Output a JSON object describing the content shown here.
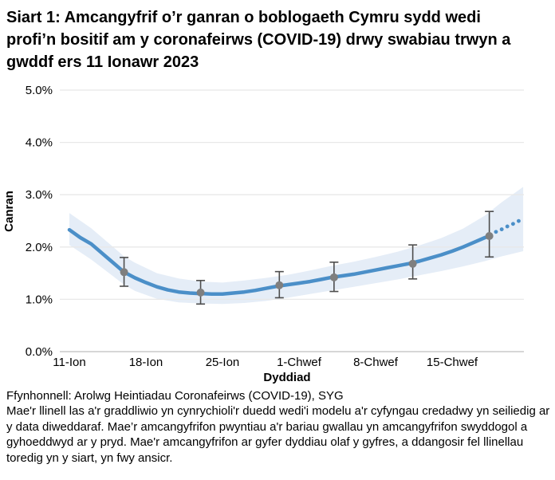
{
  "title": "Siart 1: Amcangyfrif o’r ganran o boblogaeth Cymru sydd wedi profi’n bositif am y coronafeirws (COVID-19) drwy swabiau trwyn a gwddf ers 11 Ionawr 2023",
  "footer": {
    "source": "Ffynhonnell: Arolwg Heintiadau Coronafeirws (COVID-19), SYG",
    "notes": "Mae'r llinell las a'r graddliwio yn cynrychioli'r duedd wedi'i modelu a'r cyfyngau credadwy yn seiliedig ar y data diweddaraf. Mae’r amcangyfrifon pwyntiau a'r bariau gwallau yn amcangyfrifon swyddogol a gyhoeddwyd ar y pryd. Mae'r amcangyfrifon ar gyfer dyddiau olaf y gyfres, a ddangosir fel llinellau toredig yn y siart, yn fwy ansicr."
  },
  "chart_data": {
    "type": "line",
    "title": "Siart 1: Amcangyfrif o’r ganran o boblogaeth Cymru sydd wedi profi’n bositif am y coronafeirws (COVID-19) drwy swabiau trwyn a gwddf ers 11 Ionawr 2023",
    "xlabel": "Dyddiad",
    "ylabel": "Canran",
    "ylim": [
      0,
      5
    ],
    "xlim_days": [
      -1,
      41.5
    ],
    "grid": "horizontal",
    "legend": "none",
    "y_ticks": [
      {
        "value": 0,
        "label": "0.0%"
      },
      {
        "value": 1,
        "label": "1.0%"
      },
      {
        "value": 2,
        "label": "2.0%"
      },
      {
        "value": 3,
        "label": "3.0%"
      },
      {
        "value": 4,
        "label": "4.0%"
      },
      {
        "value": 5,
        "label": "5.0%"
      }
    ],
    "x_ticks": [
      {
        "day": 0,
        "label": "11-Ion"
      },
      {
        "day": 7,
        "label": "18-Ion"
      },
      {
        "day": 14,
        "label": "25-Ion"
      },
      {
        "day": 21,
        "label": "1-Chwef"
      },
      {
        "day": 28,
        "label": "8-Chwef"
      },
      {
        "day": 35,
        "label": "15-Chwef"
      }
    ],
    "trend_solid": [
      [
        0,
        2.33
      ],
      [
        1,
        2.18
      ],
      [
        2,
        2.06
      ],
      [
        3,
        1.88
      ],
      [
        4,
        1.7
      ],
      [
        5,
        1.52
      ],
      [
        6,
        1.41
      ],
      [
        7,
        1.32
      ],
      [
        8,
        1.24
      ],
      [
        9,
        1.18
      ],
      [
        10,
        1.14
      ],
      [
        11,
        1.12
      ],
      [
        12,
        1.11
      ],
      [
        13,
        1.1
      ],
      [
        14,
        1.1
      ],
      [
        15,
        1.12
      ],
      [
        16,
        1.14
      ],
      [
        17,
        1.17
      ],
      [
        18,
        1.21
      ],
      [
        19,
        1.25
      ],
      [
        20,
        1.28
      ],
      [
        21,
        1.31
      ],
      [
        22,
        1.34
      ],
      [
        23,
        1.38
      ],
      [
        24,
        1.42
      ],
      [
        25,
        1.45
      ],
      [
        26,
        1.48
      ],
      [
        27,
        1.52
      ],
      [
        28,
        1.56
      ],
      [
        29,
        1.6
      ],
      [
        30,
        1.64
      ],
      [
        31,
        1.68
      ],
      [
        32,
        1.73
      ],
      [
        33,
        1.79
      ],
      [
        34,
        1.85
      ],
      [
        35,
        1.92
      ],
      [
        36,
        2.0
      ],
      [
        37,
        2.09
      ],
      [
        38,
        2.18
      ],
      [
        38.4,
        2.21
      ]
    ],
    "trend_dotted": [
      [
        39.0,
        2.29
      ],
      [
        39.55,
        2.34
      ],
      [
        40.1,
        2.4
      ],
      [
        40.65,
        2.45
      ],
      [
        41.2,
        2.51
      ]
    ],
    "band_upper": [
      [
        0,
        2.65
      ],
      [
        2,
        2.36
      ],
      [
        4,
        2.0
      ],
      [
        5,
        1.82
      ],
      [
        6,
        1.7
      ],
      [
        8,
        1.5
      ],
      [
        10,
        1.4
      ],
      [
        12,
        1.34
      ],
      [
        14,
        1.32
      ],
      [
        16,
        1.36
      ],
      [
        18,
        1.41
      ],
      [
        20,
        1.47
      ],
      [
        22,
        1.55
      ],
      [
        24,
        1.64
      ],
      [
        26,
        1.72
      ],
      [
        28,
        1.81
      ],
      [
        30,
        1.91
      ],
      [
        32,
        2.03
      ],
      [
        34,
        2.17
      ],
      [
        36,
        2.35
      ],
      [
        38,
        2.6
      ],
      [
        39.5,
        2.85
      ],
      [
        41.5,
        3.15
      ]
    ],
    "band_lower": [
      [
        0,
        2.04
      ],
      [
        2,
        1.76
      ],
      [
        4,
        1.44
      ],
      [
        5,
        1.28
      ],
      [
        6,
        1.16
      ],
      [
        8,
        1.01
      ],
      [
        10,
        0.94
      ],
      [
        12,
        0.92
      ],
      [
        14,
        0.91
      ],
      [
        16,
        0.93
      ],
      [
        18,
        0.97
      ],
      [
        20,
        1.03
      ],
      [
        22,
        1.1
      ],
      [
        24,
        1.17
      ],
      [
        26,
        1.24
      ],
      [
        28,
        1.31
      ],
      [
        30,
        1.38
      ],
      [
        32,
        1.46
      ],
      [
        34,
        1.54
      ],
      [
        36,
        1.63
      ],
      [
        38,
        1.73
      ],
      [
        39.5,
        1.82
      ],
      [
        41.5,
        1.92
      ]
    ],
    "point_estimates": [
      {
        "date": "16-Ion",
        "day": 5,
        "value": 1.52,
        "lower": 1.25,
        "upper": 1.8
      },
      {
        "date": "23-Ion",
        "day": 12,
        "value": 1.13,
        "lower": 0.91,
        "upper": 1.36
      },
      {
        "date": "30-Ion",
        "day": 19.2,
        "value": 1.27,
        "lower": 1.03,
        "upper": 1.53
      },
      {
        "date": "4-Chwef",
        "day": 24.2,
        "value": 1.42,
        "lower": 1.15,
        "upper": 1.71
      },
      {
        "date": "11-Chwef",
        "day": 31.4,
        "value": 1.68,
        "lower": 1.39,
        "upper": 2.04
      },
      {
        "date": "18-Chwef",
        "day": 38.4,
        "value": 2.21,
        "lower": 1.81,
        "upper": 2.68
      }
    ],
    "colors": {
      "trend": "#4b8fc8",
      "band": "#e5edf7",
      "points": "#7f7f7f",
      "error_bars": "#4d4d4d",
      "gridline": "#e8e8e8",
      "axis_line": "#bfbfbf"
    }
  }
}
